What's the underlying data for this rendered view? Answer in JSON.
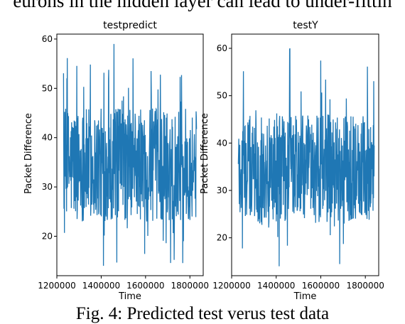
{
  "body_text": "eurons in the hidden layer can lead to under-fittin",
  "caption": "Fig. 4: Predicted test verus test data",
  "colors": {
    "series": "#1f77b4",
    "axes": "#000000"
  },
  "chart_data": [
    {
      "type": "line",
      "title": "testpredict",
      "xlabel": "Time",
      "ylabel": "Packet Difference",
      "xlim": [
        1200000,
        1860000
      ],
      "ylim": [
        12,
        61
      ],
      "xticks": [
        1200000,
        1400000,
        1600000,
        1800000
      ],
      "yticks": [
        20,
        30,
        40,
        50,
        60
      ],
      "x_range": [
        1230000,
        1830000
      ],
      "series": [
        {
          "summary": "dense noisy series oscillating mostly between about 23 and 46, occasional spikes up to about 59 and dips down to about 14",
          "typical_low": 23,
          "typical_high": 46,
          "max": 59,
          "min": 14
        }
      ]
    },
    {
      "type": "line",
      "title": "testY",
      "xlabel": "Time",
      "ylabel": "Packet Difference",
      "xlim": [
        1200000,
        1860000
      ],
      "ylim": [
        12,
        63
      ],
      "xticks": [
        1200000,
        1400000,
        1600000,
        1800000
      ],
      "yticks": [
        20,
        30,
        40,
        50,
        60
      ],
      "x_range": [
        1230000,
        1840000
      ],
      "series": [
        {
          "summary": "dense noisy series oscillating mostly between about 23 and 46, occasional spikes up to about 60 and dips down to about 14",
          "typical_low": 23,
          "typical_high": 46,
          "max": 60,
          "min": 14
        }
      ]
    }
  ]
}
